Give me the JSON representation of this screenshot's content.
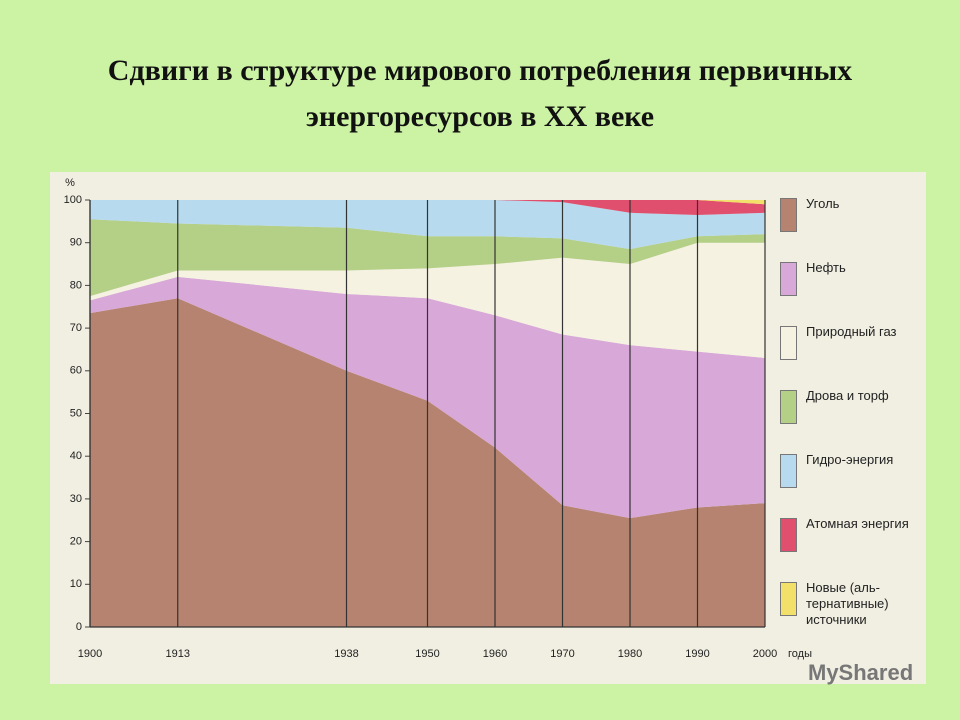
{
  "chart_data": {
    "type": "stacked-area",
    "title": "Сдвиги в структуре мирового потребления первичных энергоресурсов в XX веке",
    "y_label": "%",
    "x_label": "годы",
    "watermark": "MyShared",
    "x": [
      1900,
      1913,
      1938,
      1950,
      1960,
      1970,
      1980,
      1990,
      2000
    ],
    "xlim": [
      1900,
      2000
    ],
    "ylim": [
      0,
      100
    ],
    "yticks": [
      0,
      10,
      20,
      30,
      40,
      50,
      60,
      70,
      80,
      90,
      100
    ],
    "series": [
      {
        "name": "Уголь",
        "color": "#b5836f",
        "values": [
          73.5,
          77,
          60,
          53,
          42,
          28.5,
          25.5,
          28,
          29
        ]
      },
      {
        "name": "Нефть",
        "color": "#d8a8d8",
        "values": [
          3,
          5,
          18,
          24,
          31,
          40,
          40.5,
          36.5,
          34
        ]
      },
      {
        "name": "Природный газ",
        "color": "#f5f2e2",
        "values": [
          1,
          1.5,
          5.5,
          7,
          12,
          18,
          19,
          25.5,
          27
        ]
      },
      {
        "name": "Дрова и торф",
        "color": "#b4cf86",
        "values": [
          18,
          11,
          10,
          7.5,
          6.5,
          4.5,
          3.5,
          1.5,
          2
        ]
      },
      {
        "name": "Гидро-энергия",
        "color": "#b7daee",
        "values": [
          4.5,
          5.5,
          6.5,
          8.5,
          8.5,
          8.5,
          8.5,
          5,
          5
        ]
      },
      {
        "name": "Атомная энергия",
        "color": "#e0506e",
        "values": [
          0,
          0,
          0,
          0,
          0,
          0.5,
          3,
          3.5,
          2
        ]
      },
      {
        "name": "Новые (аль-тернативные) источники",
        "color": "#f2e06a",
        "values": [
          0,
          0,
          0,
          0,
          0,
          0,
          0,
          0,
          1
        ]
      }
    ]
  }
}
